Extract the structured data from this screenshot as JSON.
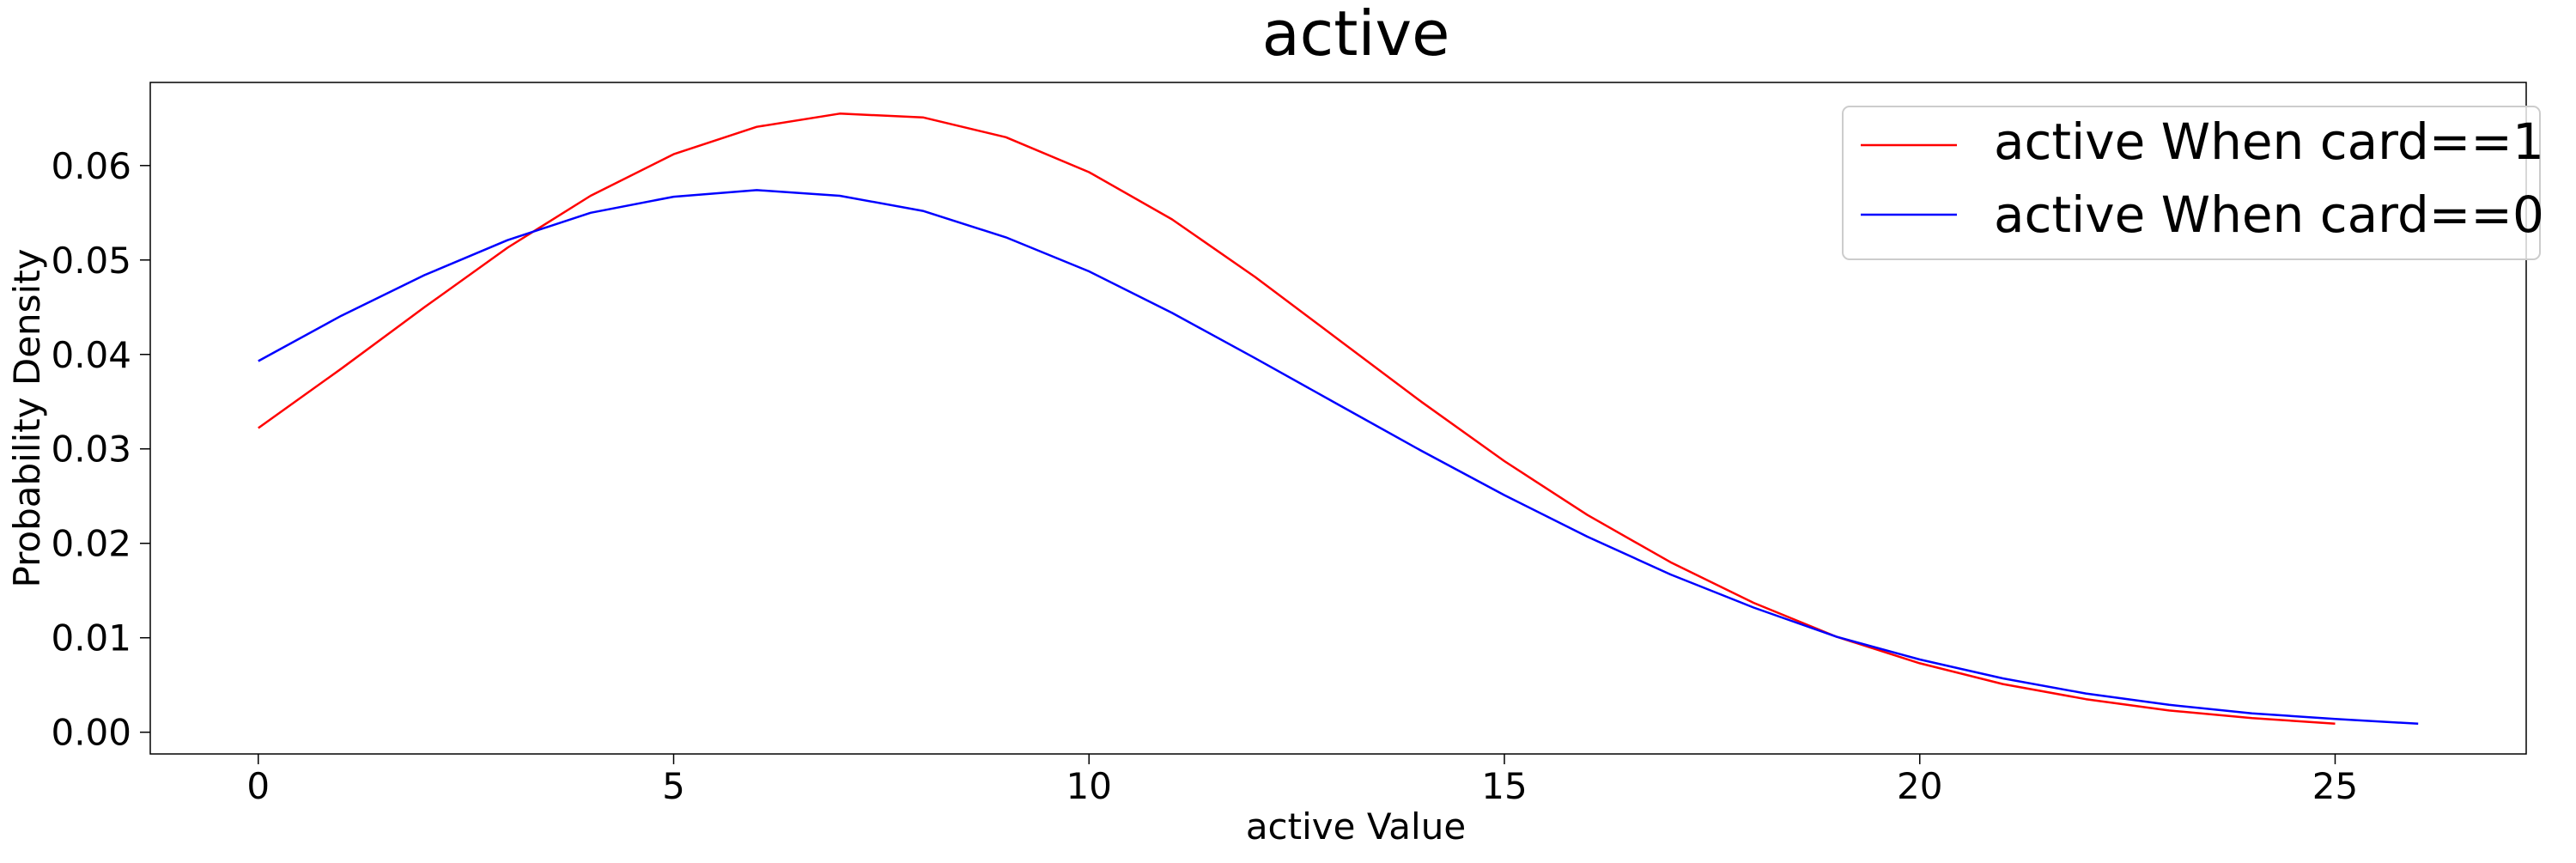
{
  "chart_data": {
    "type": "line",
    "title": "active",
    "xlabel": "active Value",
    "ylabel": "Probability Density",
    "xlim": [
      -1.3,
      27.3
    ],
    "ylim": [
      -0.0023,
      0.0688
    ],
    "xticks": [
      0,
      5,
      10,
      15,
      20,
      25
    ],
    "yticks": [
      0.0,
      0.01,
      0.02,
      0.03,
      0.04,
      0.05,
      0.06
    ],
    "ytick_labels": [
      "0.00",
      "0.01",
      "0.02",
      "0.03",
      "0.04",
      "0.05",
      "0.06"
    ],
    "grid": false,
    "legend_position": "top-right",
    "series": [
      {
        "name": "active When card==1",
        "color": "#ff0000",
        "x": [
          0,
          1,
          2,
          3,
          4,
          5,
          6,
          7,
          8,
          9,
          10,
          11,
          12,
          13,
          14,
          15,
          16,
          17,
          18,
          19,
          20,
          21,
          22,
          23,
          24,
          25
        ],
        "y": [
          0.0322,
          0.0385,
          0.045,
          0.0513,
          0.0568,
          0.0612,
          0.0641,
          0.0655,
          0.0651,
          0.063,
          0.0593,
          0.0543,
          0.0482,
          0.0416,
          0.035,
          0.0287,
          0.023,
          0.018,
          0.0137,
          0.0101,
          0.0073,
          0.0051,
          0.0035,
          0.0023,
          0.0015,
          0.0009
        ]
      },
      {
        "name": "active When card==0",
        "color": "#0000ff",
        "x": [
          0,
          1,
          2,
          3,
          4,
          5,
          6,
          7,
          8,
          9,
          10,
          11,
          12,
          13,
          14,
          15,
          16,
          17,
          18,
          19,
          20,
          21,
          22,
          23,
          24,
          25,
          26
        ],
        "y": [
          0.0393,
          0.0441,
          0.0484,
          0.0521,
          0.055,
          0.0567,
          0.0574,
          0.0568,
          0.0552,
          0.0524,
          0.0488,
          0.0444,
          0.0396,
          0.0347,
          0.0298,
          0.0251,
          0.0207,
          0.0167,
          0.0132,
          0.0101,
          0.0077,
          0.0057,
          0.0041,
          0.0029,
          0.002,
          0.0014,
          0.0009
        ]
      }
    ]
  }
}
